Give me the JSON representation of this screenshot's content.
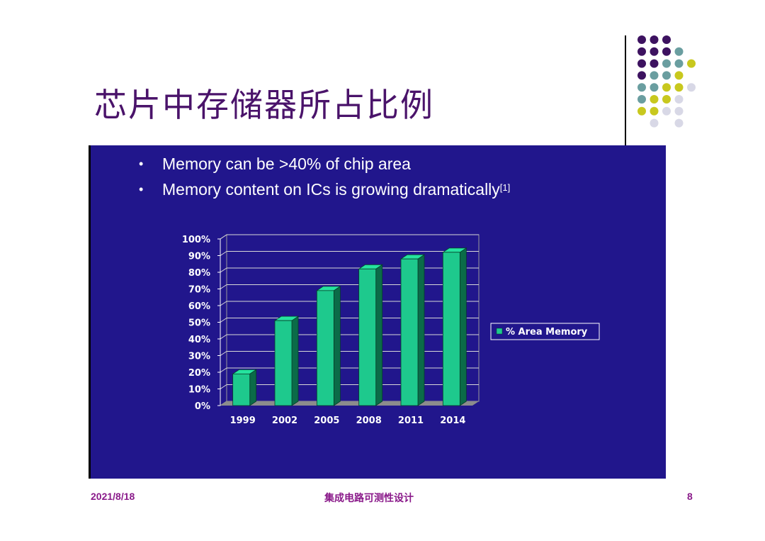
{
  "slide": {
    "title": "芯片中存储器所占比例",
    "bullets": [
      {
        "text": "Memory can be >40% of chip area",
        "sup": ""
      },
      {
        "text": "Memory content on ICs is growing dramatically",
        "sup": "[1]"
      }
    ],
    "bullet_symbol": "•"
  },
  "footer": {
    "date": "2021/8/18",
    "course": "集成电路可测性设计",
    "page": "8"
  },
  "colors": {
    "title": "#4a136a",
    "panel": "#21168c",
    "bar_front": "#1ec98d",
    "bar_top": "#25e39f",
    "bar_side": "#0b6b48",
    "footer": "#8a1a8a",
    "dot_purple": "#3d1260",
    "dot_teal": "#6a9ea0",
    "dot_yellow": "#c8c81e",
    "dot_lavender": "#d8d8e6"
  },
  "chart_data": {
    "type": "bar",
    "categories": [
      "1999",
      "2002",
      "2005",
      "2008",
      "2011",
      "2014"
    ],
    "series": [
      {
        "name": "% Area Memory",
        "values": [
          19,
          51,
          69,
          82,
          88,
          92
        ]
      }
    ],
    "yticks": [
      "0%",
      "10%",
      "20%",
      "30%",
      "40%",
      "50%",
      "60%",
      "70%",
      "80%",
      "90%",
      "100%"
    ],
    "ylim": [
      0,
      100
    ],
    "grid": true,
    "legend": "right",
    "style": "3d"
  }
}
